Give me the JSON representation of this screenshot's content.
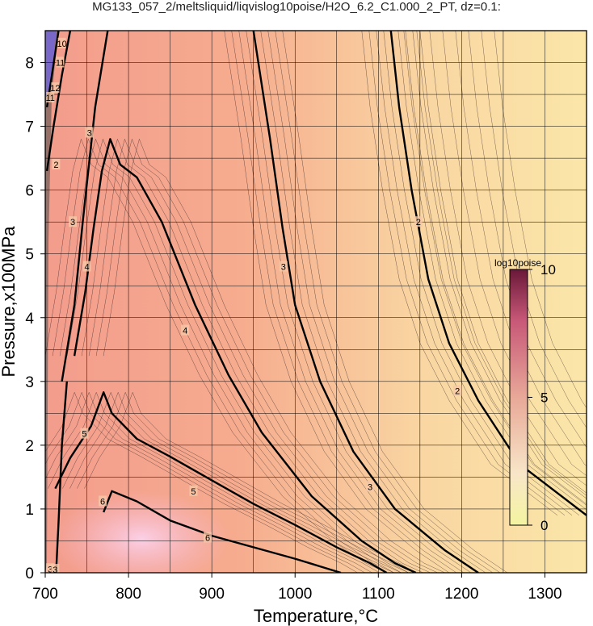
{
  "chart_data": {
    "type": "heatmap",
    "title": "MG133_057_2/meltsliquid/liqvislog10poise/H2O_6.2_C1.000_2_PT, dz=0.1:",
    "xlabel": "Temperature,°C",
    "ylabel": "Pressure,x100MPa",
    "xlim": [
      700,
      1350
    ],
    "ylim": [
      0,
      8.5
    ],
    "xticks": [
      "700",
      "800",
      "900",
      "1000",
      "1100",
      "1200",
      "1300"
    ],
    "yticks": [
      "0",
      "1",
      "2",
      "3",
      "4",
      "5",
      "6",
      "7",
      "8"
    ],
    "grid": true,
    "contour_interval": 0.1,
    "colorbar": {
      "label": "log10poise",
      "range": [
        0,
        10
      ],
      "ticks": [
        "0",
        "5",
        "10"
      ],
      "colors": [
        "#f4f4a0",
        "#f8e6c8",
        "#e8a898",
        "#c85878",
        "#6a1838"
      ]
    },
    "field_colors": {
      "cool_low_pressure": "#f7b6cf",
      "mid": "#f5a28e",
      "hot": "#f8e6a8"
    },
    "contours": [
      {
        "level": "6",
        "points": [
          [
            770,
            0.95
          ],
          [
            780,
            1.28
          ],
          [
            810,
            1.12
          ],
          [
            850,
            0.82
          ],
          [
            900,
            0.58
          ],
          [
            950,
            0.4
          ],
          [
            1000,
            0.22
          ],
          [
            1030,
            0.1
          ],
          [
            1055,
            0.0
          ]
        ]
      },
      {
        "level": "5",
        "points": [
          [
            712,
            1.32
          ],
          [
            730,
            1.8
          ],
          [
            755,
            2.3
          ],
          [
            770,
            2.83
          ],
          [
            780,
            2.5
          ],
          [
            810,
            2.1
          ],
          [
            850,
            1.82
          ],
          [
            900,
            1.45
          ],
          [
            950,
            1.08
          ],
          [
            1000,
            0.75
          ],
          [
            1050,
            0.4
          ],
          [
            1090,
            0.15
          ],
          [
            1110,
            0.0
          ]
        ]
      },
      {
        "level": "4",
        "points": [
          [
            735,
            3.4
          ],
          [
            748,
            4.4
          ],
          [
            758,
            5.4
          ],
          [
            768,
            6.3
          ],
          [
            778,
            6.8
          ],
          [
            790,
            6.4
          ],
          [
            810,
            6.2
          ],
          [
            840,
            5.5
          ],
          [
            880,
            4.2
          ],
          [
            920,
            3.1
          ],
          [
            960,
            2.2
          ],
          [
            1020,
            1.2
          ],
          [
            1080,
            0.5
          ],
          [
            1120,
            0.15
          ],
          [
            1145,
            0.0
          ]
        ]
      },
      {
        "level": "3",
        "points": [
          [
            720,
            3.0
          ],
          [
            735,
            4.2
          ],
          [
            745,
            5.5
          ],
          [
            760,
            7.3
          ],
          [
            775,
            8.5
          ]
        ]
      },
      {
        "level": "3",
        "points": [
          [
            950,
            8.5
          ],
          [
            970,
            6.8
          ],
          [
            985,
            5.4
          ],
          [
            1000,
            4.2
          ],
          [
            1030,
            3.0
          ],
          [
            1070,
            1.9
          ],
          [
            1120,
            1.0
          ],
          [
            1180,
            0.35
          ],
          [
            1220,
            0.0
          ]
        ]
      },
      {
        "level": "3",
        "points": [
          [
            713,
            0.0
          ],
          [
            716,
            0.8
          ],
          [
            720,
            2.0
          ],
          [
            726,
            3.0
          ]
        ]
      },
      {
        "level": "2",
        "points": [
          [
            1115,
            8.5
          ],
          [
            1125,
            7.3
          ],
          [
            1140,
            6.0
          ],
          [
            1160,
            4.6
          ],
          [
            1185,
            3.6
          ],
          [
            1220,
            2.7
          ],
          [
            1270,
            1.7
          ],
          [
            1350,
            0.9
          ]
        ]
      },
      {
        "level": "2",
        "points": [
          [
            702,
            6.3
          ],
          [
            710,
            7.0
          ],
          [
            720,
            7.8
          ],
          [
            730,
            8.5
          ]
        ]
      },
      {
        "level": "11",
        "points": [
          [
            702,
            7.3
          ],
          [
            708,
            7.8
          ],
          [
            716,
            8.5
          ]
        ]
      }
    ],
    "contour_labels": [
      {
        "text": "6",
        "x": 895,
        "y": 0.55
      },
      {
        "text": "6",
        "x": 769,
        "y": 1.12
      },
      {
        "text": "5",
        "x": 878,
        "y": 1.28
      },
      {
        "text": "5",
        "x": 747,
        "y": 2.18
      },
      {
        "text": "4",
        "x": 868,
        "y": 3.8
      },
      {
        "text": "4",
        "x": 750,
        "y": 4.8
      },
      {
        "text": "3",
        "x": 986,
        "y": 4.8
      },
      {
        "text": "3",
        "x": 1090,
        "y": 1.35
      },
      {
        "text": "3",
        "x": 733,
        "y": 5.5
      },
      {
        "text": "3",
        "x": 753,
        "y": 6.9
      },
      {
        "text": "2",
        "x": 1148,
        "y": 5.5
      },
      {
        "text": "2",
        "x": 1195,
        "y": 2.85
      },
      {
        "text": "2",
        "x": 713,
        "y": 6.4
      },
      {
        "text": "11",
        "x": 706,
        "y": 7.45
      },
      {
        "text": "12",
        "x": 712,
        "y": 7.6
      },
      {
        "text": "11",
        "x": 718,
        "y": 8.0
      },
      {
        "text": "10",
        "x": 720,
        "y": 8.3
      },
      {
        "text": "3",
        "x": 706,
        "y": 0.06
      },
      {
        "text": "3",
        "x": 712,
        "y": 0.05
      }
    ]
  }
}
